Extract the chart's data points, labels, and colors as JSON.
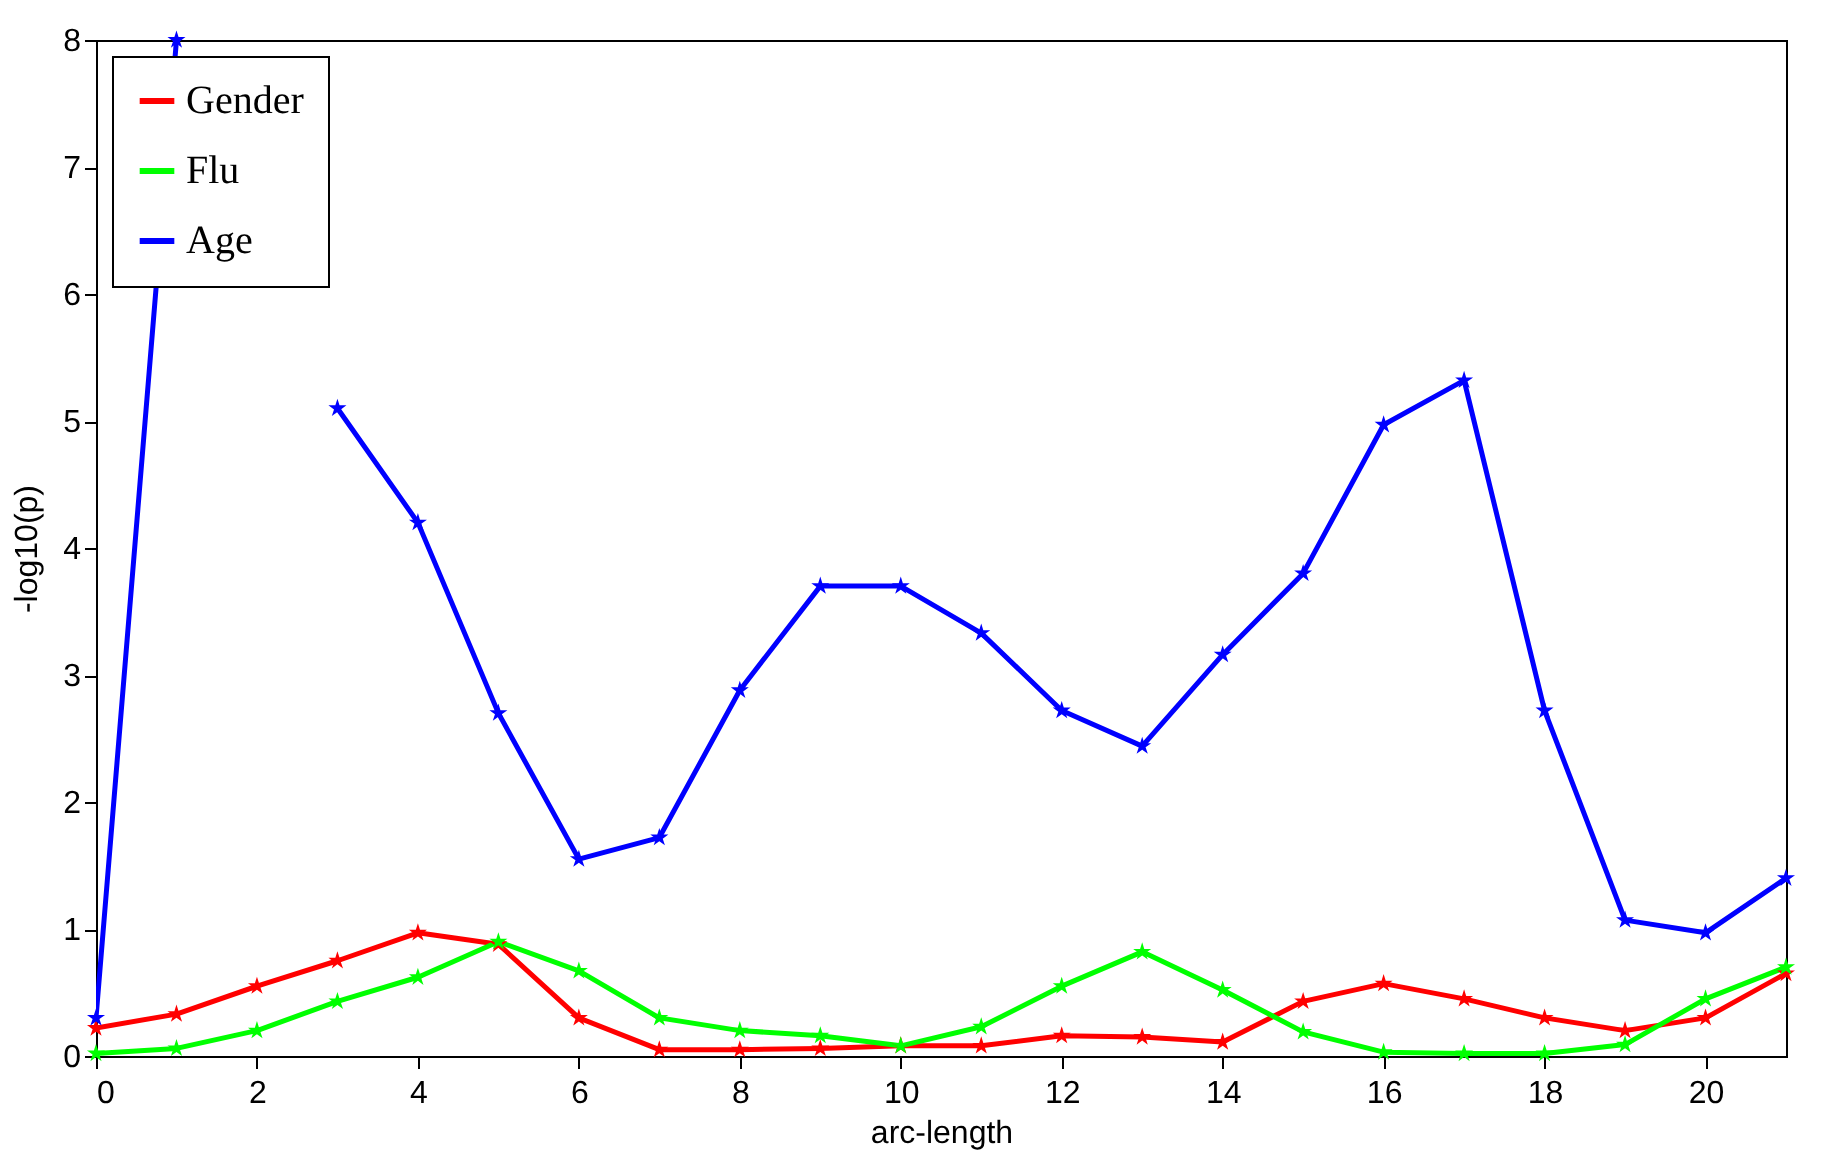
{
  "chart_data": {
    "type": "line",
    "xlabel": "arc-length",
    "ylabel": "-log10(p)",
    "x": [
      0,
      1,
      2,
      3,
      4,
      5,
      6,
      7,
      8,
      9,
      10,
      11,
      12,
      13,
      14,
      15,
      16,
      17,
      18,
      19,
      20,
      21
    ],
    "xlim": [
      0,
      21
    ],
    "xticks": [
      0,
      2,
      4,
      6,
      8,
      10,
      12,
      14,
      16,
      18,
      20
    ],
    "ylim": [
      0,
      8
    ],
    "yticks": [
      0,
      1,
      2,
      3,
      4,
      5,
      6,
      7,
      8
    ],
    "grid": false,
    "legend": "top left",
    "marker": "star",
    "line_style": "solid",
    "series": [
      {
        "name": "Gender",
        "color": "#ff0000",
        "values": [
          0.22,
          0.33,
          0.55,
          0.75,
          0.97,
          0.88,
          0.3,
          0.05,
          0.05,
          0.06,
          0.08,
          0.08,
          0.16,
          0.15,
          0.11,
          0.43,
          0.57,
          0.45,
          0.3,
          0.2,
          0.3,
          0.65
        ]
      },
      {
        "name": "Flu",
        "color": "#00ff00",
        "values": [
          0.02,
          0.06,
          0.2,
          0.43,
          0.62,
          0.9,
          0.67,
          0.3,
          0.2,
          0.16,
          0.08,
          0.23,
          0.55,
          0.82,
          0.52,
          0.19,
          0.03,
          0.02,
          0.02,
          0.09,
          0.45,
          0.7
        ]
      },
      {
        "name": "Age",
        "color": "#0000ff",
        "values": [
          0.3,
          8.0,
          null,
          5.1,
          4.2,
          2.7,
          1.55,
          1.72,
          2.88,
          3.7,
          3.7,
          3.33,
          2.72,
          2.44,
          3.16,
          3.8,
          4.97,
          5.32,
          2.72,
          1.07,
          0.97,
          1.4
        ]
      }
    ]
  }
}
